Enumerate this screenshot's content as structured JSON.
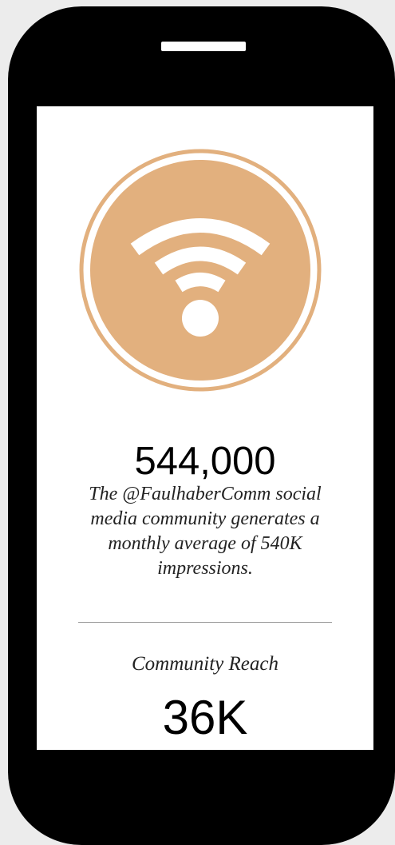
{
  "metric": {
    "value": "544,000",
    "description": "The @FaulhaberComm social media community generates a monthly average of 540K impressions."
  },
  "community": {
    "label": "Community Reach",
    "value": "36K"
  },
  "icon": {
    "name": "wifi-icon",
    "color": "#e2b07e"
  },
  "colors": {
    "phone_body": "#000000",
    "screen": "#ffffff",
    "accent": "#e2b07e"
  }
}
